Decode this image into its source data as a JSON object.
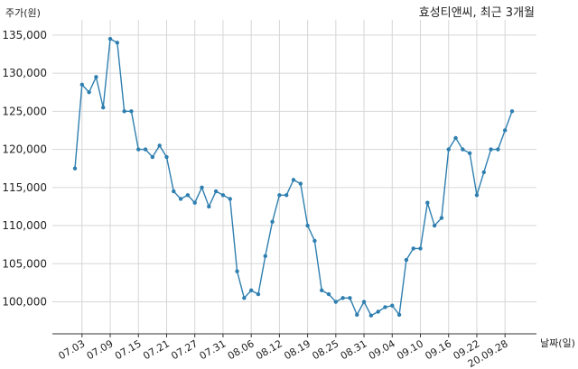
{
  "chart_data": {
    "type": "line",
    "title": "효성티앤씨, 최근 3개월",
    "ylabel": "주가(원)",
    "xlabel": "날짜(일)",
    "ylim": [
      95800,
      137000
    ],
    "grid": true,
    "y_ticks": [
      100000,
      105000,
      110000,
      115000,
      120000,
      125000,
      130000,
      135000
    ],
    "y_tick_labels": [
      "100,000",
      "105,000",
      "110,000",
      "115,000",
      "120,000",
      "125,000",
      "130,000",
      "135,000"
    ],
    "x_tick_labels": [
      "07.03",
      "07.09",
      "07.15",
      "07.21",
      "07.27",
      "07.31",
      "08.06",
      "08.12",
      "08.19",
      "08.25",
      "08.31",
      "09.04",
      "09.10",
      "09.16",
      "09.22",
      "20.09.28"
    ],
    "x_tick_index": [
      1,
      5,
      9,
      13,
      17,
      21,
      25,
      29,
      33,
      37,
      41,
      45,
      49,
      53,
      57,
      61
    ],
    "series": [
      {
        "color": "#2e7fb0",
        "values": [
          117500,
          128500,
          127500,
          129500,
          125500,
          134500,
          134000,
          125000,
          125000,
          120000,
          120000,
          119000,
          120500,
          119000,
          114500,
          113500,
          114000,
          113000,
          115000,
          112500,
          114500,
          114000,
          113500,
          104000,
          100500,
          101500,
          101000,
          106000,
          110500,
          114000,
          114000,
          116000,
          115500,
          110000,
          108000,
          101500,
          101000,
          100000,
          100500,
          100500,
          98300,
          100000,
          98200,
          98700,
          99300,
          99500,
          98300,
          105500,
          107000,
          107000,
          113000,
          110000,
          111000,
          120000,
          121500,
          120000,
          119500,
          114000,
          117000,
          120000,
          120000,
          122500,
          125000
        ]
      }
    ]
  }
}
